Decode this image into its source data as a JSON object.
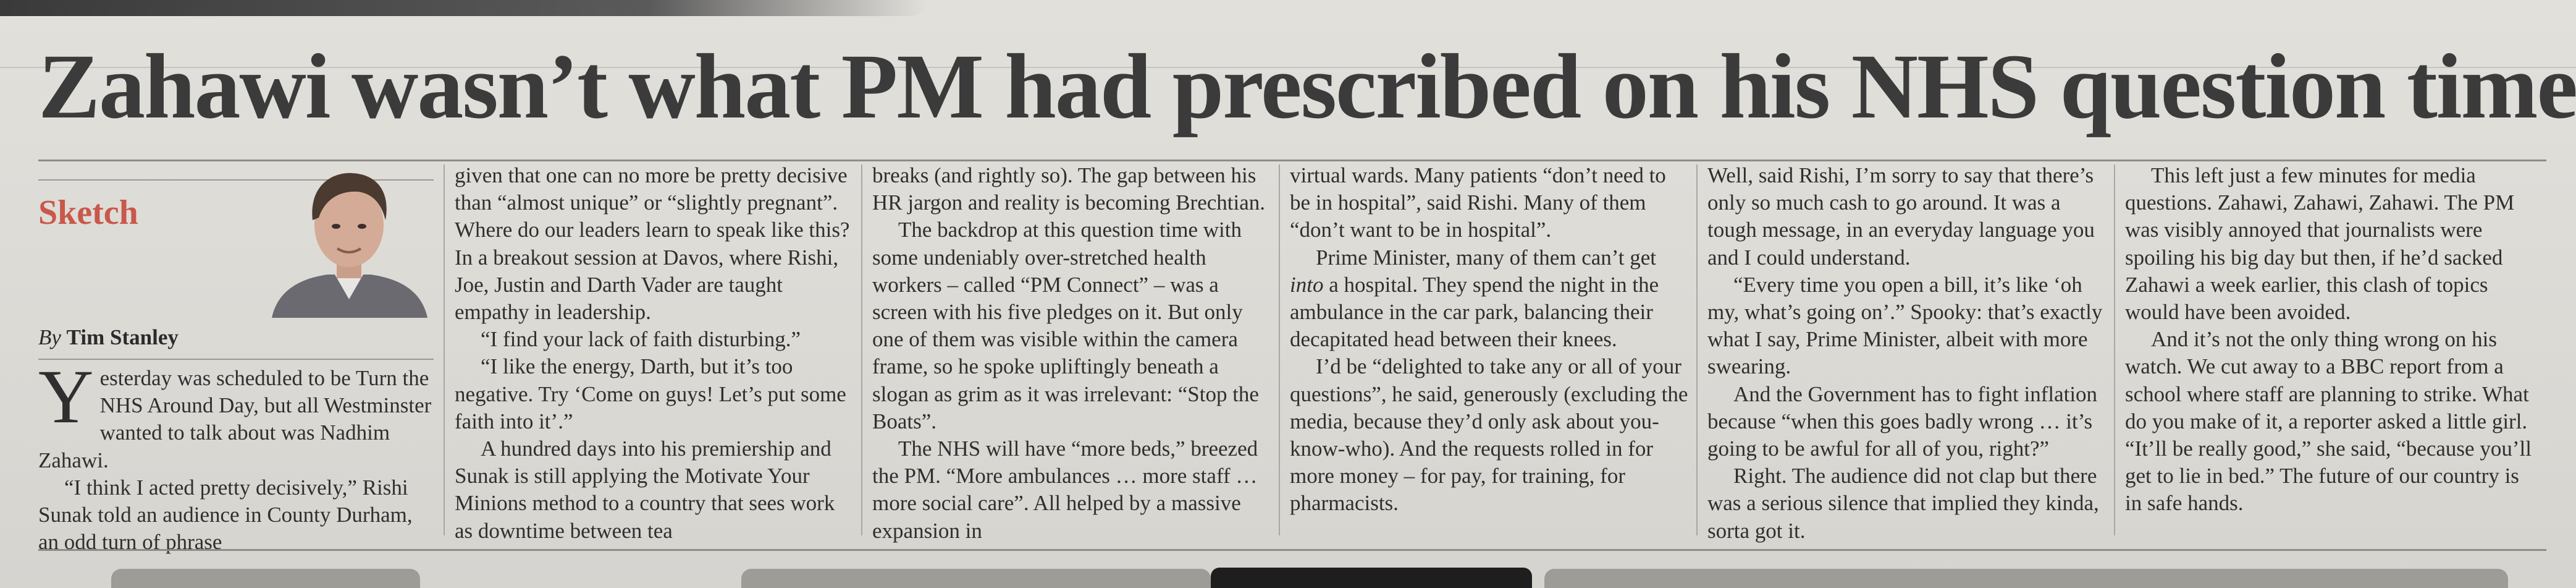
{
  "article": {
    "headline": "Zahawi wasn’t what PM had prescribed on his NHS question time",
    "section": "Sketch",
    "byline_prefix": "By",
    "author": "Tim Stanley"
  },
  "columns": {
    "col1": {
      "dropcap": "Y",
      "p1": "esterday was scheduled to be Turn the NHS Around Day, but all Westminster wanted to talk about was Nadhim Zahawi.",
      "p2": "“I think I acted pretty decisively,” Rishi Sunak told an audience in County Durham, an odd turn of phrase"
    },
    "col2": {
      "p1": "given that one can no more be pretty decisive than “almost unique” or “slightly pregnant”. Where do our leaders learn to speak like this? In a breakout session at Davos, where Rishi, Joe, Justin and Darth Vader are taught empathy in leadership.",
      "p2": "“I find your lack of faith disturbing.”",
      "p3": "“I like the energy, Darth, but it’s too negative. Try ‘Come on guys! Let’s put some faith into it’.”",
      "p4": "A hundred days into his premiership and Sunak is still applying the Motivate Your Minions method to a country that sees work as downtime between tea"
    },
    "col3": {
      "p1": "breaks (and rightly so). The gap between his HR jargon and reality is becoming Brechtian.",
      "p2": "The backdrop at this question time with some undeniably over-stretched health workers – called “PM Connect” – was a screen with his five pledges on it. But only one of them was visible within the camera frame, so he spoke upliftingly beneath a slogan as grim as it was irrelevant: “Stop the Boats”.",
      "p3": "The NHS will have “more beds,” breezed the PM. “More ambulances … more staff … more social care”. All helped by a massive expansion in"
    },
    "col4": {
      "p1": "virtual wards. Many patients “don’t need to be in hospital”, said Rishi. Many of them “don’t want to be in hospital”.",
      "p2_a": "Prime Minister, many of them can’t get ",
      "p2_em": "into",
      "p2_b": " a hospital. They spend the night in the ambulance in the car park, balancing their decapitated head between their knees.",
      "p3": "I’d be “delighted to take any or all of your questions”, he said, generously (excluding the media, because they’d only ask about you-know-who). And the requests rolled in for more money – for pay, for training, for pharmacists."
    },
    "col5": {
      "p1": "Well, said Rishi, I’m sorry to say that there’s only so much cash to go around. It was a tough message, in an everyday language you and I could understand.",
      "p2": "“Every time you open a bill, it’s like ‘oh my, what’s going on’.” Spooky: that’s exactly what I say, Prime Minister, albeit with more swearing.",
      "p3": "And the Government has to fight inflation because “when this goes badly wrong … it’s going to be awful for all of you, right?”",
      "p4": "Right. The audience did not clap but there was a serious silence that implied they kinda, sorta got it."
    },
    "col6": {
      "p1": "This left just a few minutes for media questions. Zahawi, Zahawi, Zahawi. The PM was visibly annoyed that journalists were spoiling his big day but then, if he’d sacked Zahawi a week earlier, this clash of topics would have been avoided.",
      "p2": "And it’s not the only thing wrong on his watch. We cut away to a BBC report from a school where staff are planning to strike. What do you make of it, a reporter asked a little girl. “It’ll be really good,” she said, “because you’ll get to lie in bed.” The future of our country is in safe hands."
    }
  },
  "colors": {
    "section_label": "#c9574b",
    "paper": "#dcdad5",
    "ink": "#2f2f2f"
  },
  "icons": {
    "portrait": "author-photo"
  }
}
